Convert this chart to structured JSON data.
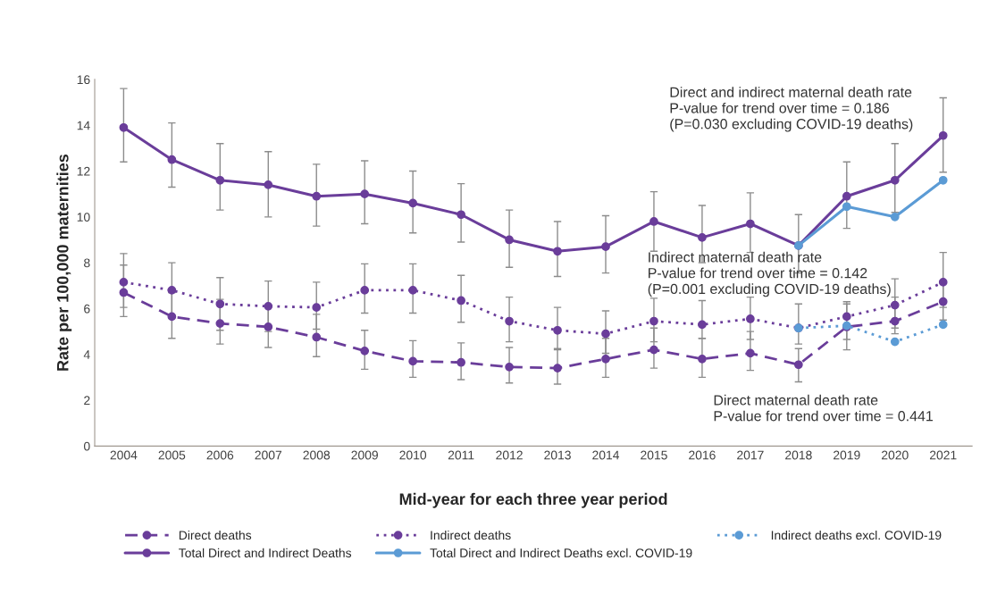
{
  "chart_data": {
    "type": "line",
    "xlabel": "Mid-year for each three year period",
    "ylabel": "Rate per 100,000 maternities",
    "categories": [
      "2004",
      "2005",
      "2006",
      "2007",
      "2008",
      "2009",
      "2010",
      "2011",
      "2012",
      "2013",
      "2014",
      "2015",
      "2016",
      "2017",
      "2018",
      "2019",
      "2020",
      "2021"
    ],
    "ylim": [
      0,
      16
    ],
    "yticks": [
      0,
      2,
      4,
      6,
      8,
      10,
      12,
      14,
      16
    ],
    "grid": false,
    "legend": "bottom",
    "marker": "circle",
    "series": [
      {
        "name": "Direct deaths",
        "color": "#6a3d9a",
        "line_style": "dashed",
        "values": [
          6.7,
          5.65,
          5.35,
          5.2,
          4.75,
          4.15,
          3.7,
          3.65,
          3.45,
          3.4,
          3.8,
          4.2,
          3.8,
          4.05,
          3.55,
          5.2,
          5.45,
          6.3
        ],
        "errors": [
          [
            5.65,
            7.9
          ],
          [
            4.7,
            6.7
          ],
          [
            4.45,
            6.4
          ],
          [
            4.3,
            6.1
          ],
          [
            3.9,
            5.75
          ],
          [
            3.35,
            5.05
          ],
          [
            3.0,
            4.6
          ],
          [
            2.9,
            4.5
          ],
          [
            2.75,
            4.3
          ],
          [
            2.7,
            4.25
          ],
          [
            3.0,
            4.7
          ],
          [
            3.4,
            5.15
          ],
          [
            3.0,
            4.7
          ],
          [
            3.3,
            5.0
          ],
          [
            2.8,
            4.25
          ],
          [
            4.2,
            6.2
          ],
          [
            4.9,
            6.5
          ],
          [
            5.5,
            7.2
          ]
        ]
      },
      {
        "name": "Indirect deaths",
        "color": "#6a3d9a",
        "line_style": "dotted",
        "values": [
          7.15,
          6.8,
          6.2,
          6.1,
          6.05,
          6.8,
          6.8,
          6.35,
          5.45,
          5.05,
          4.9,
          5.45,
          5.3,
          5.55,
          5.15,
          5.65,
          6.15,
          7.15
        ],
        "errors": [
          [
            6.05,
            8.4
          ],
          [
            5.6,
            8.0
          ],
          [
            5.05,
            7.35
          ],
          [
            5.0,
            7.2
          ],
          [
            5.1,
            7.15
          ],
          [
            5.8,
            7.95
          ],
          [
            5.8,
            7.95
          ],
          [
            5.4,
            7.45
          ],
          [
            4.55,
            6.5
          ],
          [
            4.2,
            6.05
          ],
          [
            4.05,
            5.9
          ],
          [
            4.55,
            6.45
          ],
          [
            4.7,
            6.35
          ],
          [
            4.65,
            6.5
          ],
          [
            4.45,
            6.2
          ],
          [
            4.65,
            6.3
          ],
          [
            5.15,
            7.3
          ],
          [
            6.05,
            8.45
          ]
        ]
      },
      {
        "name": "Indirect deaths excl. COVID-19",
        "color": "#5b9bd5",
        "line_style": "dotted",
        "values": [
          null,
          null,
          null,
          null,
          null,
          null,
          null,
          null,
          null,
          null,
          null,
          null,
          null,
          null,
          5.15,
          5.25,
          4.55,
          5.3
        ]
      },
      {
        "name": "Total Direct and Indirect Deaths",
        "color": "#6a3d9a",
        "line_style": "solid",
        "values": [
          13.9,
          12.5,
          11.6,
          11.4,
          10.9,
          11.0,
          10.6,
          10.1,
          9.0,
          8.5,
          8.7,
          9.8,
          9.1,
          9.7,
          8.75,
          10.9,
          11.6,
          13.55
        ],
        "errors": [
          [
            12.4,
            15.6
          ],
          [
            11.3,
            14.1
          ],
          [
            10.3,
            13.2
          ],
          [
            10.0,
            12.85
          ],
          [
            9.6,
            12.3
          ],
          [
            9.7,
            12.45
          ],
          [
            9.3,
            12.0
          ],
          [
            8.9,
            11.45
          ],
          [
            7.8,
            10.3
          ],
          [
            7.4,
            9.8
          ],
          [
            7.55,
            10.05
          ],
          [
            8.5,
            11.1
          ],
          [
            8.0,
            10.5
          ],
          [
            8.45,
            11.05
          ],
          [
            7.55,
            10.1
          ],
          [
            9.5,
            12.4
          ],
          [
            10.2,
            13.2
          ],
          [
            11.95,
            15.2
          ]
        ]
      },
      {
        "name": "Total Direct and Indirect Deaths excl. COVID-19",
        "color": "#5b9bd5",
        "line_style": "solid",
        "values": [
          null,
          null,
          null,
          null,
          null,
          null,
          null,
          null,
          null,
          null,
          null,
          null,
          null,
          null,
          8.75,
          10.45,
          10.0,
          11.6
        ]
      }
    ],
    "annotations": [
      "Direct and indirect maternal death rate\nP-value for trend over time = 0.186\n(P=0.030 excluding COVID-19 deaths)",
      "Indirect maternal death rate\nP-value for trend over time = 0.142\n(P=0.001 excluding COVID-19 deaths)",
      "Direct maternal death rate\nP-value for trend over time = 0.441"
    ]
  }
}
